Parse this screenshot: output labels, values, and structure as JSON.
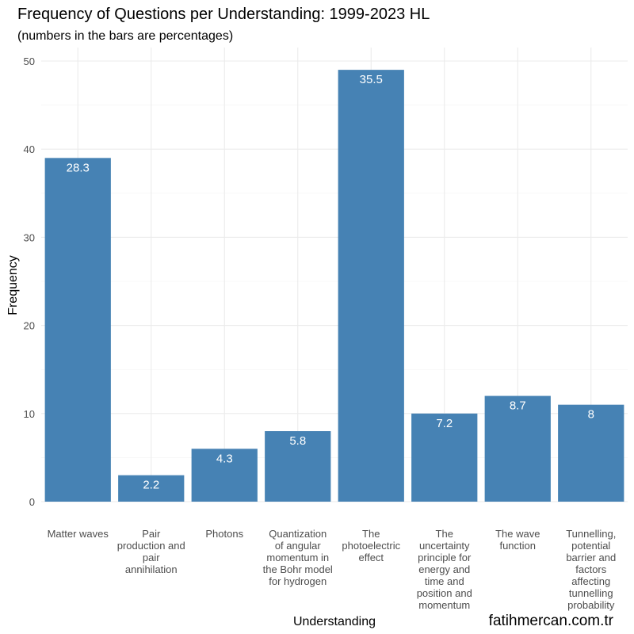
{
  "chart_data": {
    "type": "bar",
    "title": "Frequency of Questions per Understanding: 1999-2023 HL",
    "subtitle": "(numbers in the bars are percentages)",
    "xlabel": "Understanding",
    "ylabel": "Frequency",
    "ylim": [
      0,
      51
    ],
    "yticks": [
      0,
      10,
      20,
      30,
      40,
      50
    ],
    "grid": true,
    "bar_color": "#4682B4",
    "categories": [
      [
        "Matter waves"
      ],
      [
        "Pair",
        "production and",
        "pair",
        "annihilation"
      ],
      [
        "Photons"
      ],
      [
        "Quantization",
        "of angular",
        "momentum in",
        "the Bohr model",
        "for hydrogen"
      ],
      [
        "The",
        "photoelectric",
        "effect"
      ],
      [
        "The",
        "uncertainty",
        "principle for",
        "energy and",
        "time and",
        "position and",
        "momentum"
      ],
      [
        "The wave",
        "function"
      ],
      [
        "Tunnelling,",
        "potential",
        "barrier and",
        "factors",
        "affecting",
        "tunnelling",
        "probability"
      ]
    ],
    "values": [
      39,
      3,
      6,
      8,
      49,
      10,
      12,
      11
    ],
    "bar_labels": [
      "28.3",
      "2.2",
      "4.3",
      "5.8",
      "35.5",
      "7.2",
      "8.7",
      "8"
    ]
  },
  "watermark": "fatihmercan.com.tr"
}
